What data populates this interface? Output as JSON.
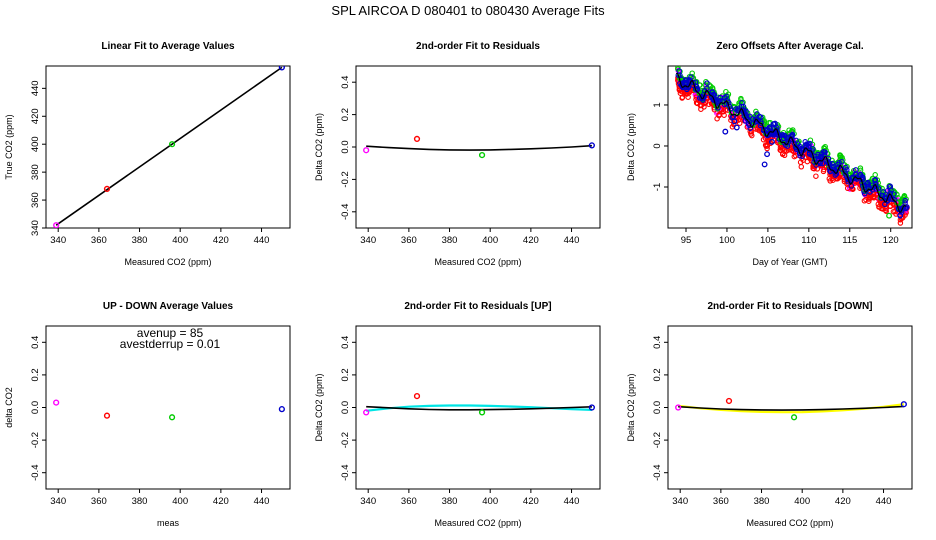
{
  "suptitle": "SPL   AIRCOA D   080401 to 080430   Average Fits",
  "colors": {
    "magenta": "#ff00ff",
    "red": "#ff0000",
    "green": "#00cc00",
    "blue": "#0000cc",
    "black": "#000000",
    "cyan": "#00e5e5",
    "yellow": "#ffff00"
  },
  "chart_data": [
    {
      "type": "scatter",
      "title": "Linear Fit to Average Values",
      "xlabel": "Measured CO2 (ppm)",
      "ylabel": "True CO2 (ppm)",
      "xlim": [
        334,
        454
      ],
      "ylim": [
        340,
        456
      ],
      "xticks": [
        340,
        360,
        380,
        400,
        420,
        440
      ],
      "yticks": [
        340,
        360,
        380,
        400,
        420,
        440
      ],
      "points": [
        {
          "x": 339,
          "y": 342,
          "color": "magenta"
        },
        {
          "x": 364,
          "y": 368,
          "color": "red"
        },
        {
          "x": 396,
          "y": 400,
          "color": "green"
        },
        {
          "x": 450,
          "y": 455,
          "color": "blue"
        }
      ],
      "lines": [
        {
          "x": [
            339,
            450
          ],
          "y": [
            342,
            455
          ],
          "color": "black"
        }
      ]
    },
    {
      "type": "scatter",
      "title": "2nd-order Fit to Residuals",
      "xlabel": "Measured CO2 (ppm)",
      "ylabel": "Delta CO2 (ppm)",
      "xlim": [
        334,
        454
      ],
      "ylim": [
        -0.5,
        0.5
      ],
      "xticks": [
        340,
        360,
        380,
        400,
        420,
        440
      ],
      "yticks": [
        -0.4,
        -0.2,
        0.0,
        0.2,
        0.4
      ],
      "points": [
        {
          "x": 339,
          "y": -0.02,
          "color": "magenta"
        },
        {
          "x": 364,
          "y": 0.05,
          "color": "red"
        },
        {
          "x": 396,
          "y": -0.05,
          "color": "green"
        },
        {
          "x": 450,
          "y": 0.01,
          "color": "blue"
        }
      ],
      "lines": [
        {
          "x": [
            339,
            350,
            360,
            370,
            380,
            390,
            400,
            410,
            420,
            430,
            440,
            450
          ],
          "y": [
            0.005,
            -0.004,
            -0.01,
            -0.015,
            -0.018,
            -0.019,
            -0.018,
            -0.015,
            -0.011,
            -0.006,
            0.0,
            0.008
          ],
          "color": "black"
        }
      ]
    },
    {
      "type": "scatter",
      "title": "Zero Offsets After Average Cal.",
      "xlabel": "Day of Year (GMT)",
      "ylabel": "Delta CO2 (ppm)",
      "xlim": [
        92.8,
        122.6
      ],
      "ylim": [
        -2.0,
        1.95
      ],
      "xticks": [
        95,
        100,
        105,
        110,
        115,
        120
      ],
      "yticks": [
        -1,
        0,
        1
      ],
      "trend": {
        "x0": 93.8,
        "x1": 122,
        "y0": 1.65,
        "y1": -1.55,
        "wiggle": 0.12
      },
      "noise": {
        "start": 94,
        "end": 122,
        "count": 330
      },
      "series": [
        {
          "name": "",
          "color": "magenta",
          "offset": 0.0
        },
        {
          "name": "",
          "color": "red",
          "offset": -0.16
        },
        {
          "name": "",
          "color": "green",
          "offset": 0.12
        },
        {
          "name": "",
          "color": "blue",
          "offset": 0.05
        }
      ],
      "dips": [
        {
          "x": 99.8,
          "y": 0.35,
          "color": "blue"
        },
        {
          "x": 100.9,
          "y": 0.6,
          "color": "blue"
        },
        {
          "x": 101.2,
          "y": 0.45,
          "color": "blue"
        },
        {
          "x": 104.6,
          "y": -0.45,
          "color": "blue"
        },
        {
          "x": 104.9,
          "y": -0.2,
          "color": "blue"
        },
        {
          "x": 105.5,
          "y": 0.1,
          "color": "blue"
        },
        {
          "x": 119.8,
          "y": -1.7,
          "color": "green"
        }
      ]
    },
    {
      "type": "scatter",
      "title": "UP - DOWN Average Values",
      "xlabel": "meas",
      "ylabel": "delta CO2",
      "xlim": [
        334,
        454
      ],
      "ylim": [
        -0.5,
        0.5
      ],
      "xticks": [
        340,
        360,
        380,
        400,
        420,
        440
      ],
      "yticks": [
        -0.4,
        -0.2,
        0.0,
        0.2,
        0.4
      ],
      "annotations": [
        "avenup =  85",
        "avestderrup =  0.01"
      ],
      "points": [
        {
          "x": 339,
          "y": 0.03,
          "color": "magenta"
        },
        {
          "x": 364,
          "y": -0.05,
          "color": "red"
        },
        {
          "x": 396,
          "y": -0.06,
          "color": "green"
        },
        {
          "x": 450,
          "y": -0.01,
          "color": "blue"
        }
      ],
      "lines": []
    },
    {
      "type": "scatter",
      "title": "2nd-order Fit to Residuals [UP]",
      "xlabel": "Measured CO2 (ppm)",
      "ylabel": "Delta CO2 (ppm)",
      "xlim": [
        334,
        454
      ],
      "ylim": [
        -0.5,
        0.5
      ],
      "xticks": [
        340,
        360,
        380,
        400,
        420,
        440
      ],
      "yticks": [
        -0.4,
        -0.2,
        0.0,
        0.2,
        0.4
      ],
      "points": [
        {
          "x": 339,
          "y": -0.03,
          "color": "magenta"
        },
        {
          "x": 364,
          "y": 0.07,
          "color": "red"
        },
        {
          "x": 396,
          "y": -0.03,
          "color": "green"
        },
        {
          "x": 450,
          "y": 0.0,
          "color": "blue"
        }
      ],
      "lines": [
        {
          "x": [
            339,
            350,
            360,
            370,
            380,
            390,
            400,
            410,
            420,
            430,
            440,
            450
          ],
          "y": [
            -0.02,
            -0.005,
            0.005,
            0.01,
            0.012,
            0.012,
            0.01,
            0.006,
            0.002,
            -0.004,
            -0.01,
            -0.015
          ],
          "color": "cyan"
        },
        {
          "x": [
            339,
            350,
            360,
            370,
            380,
            390,
            400,
            410,
            420,
            430,
            440,
            450
          ],
          "y": [
            0.005,
            -0.002,
            -0.008,
            -0.012,
            -0.014,
            -0.014,
            -0.013,
            -0.011,
            -0.008,
            -0.004,
            0.0,
            0.004
          ],
          "color": "black"
        }
      ]
    },
    {
      "type": "scatter",
      "title": "2nd-order Fit to Residuals [DOWN]",
      "xlabel": "Measured CO2 (ppm)",
      "ylabel": "Delta CO2 (ppm)",
      "xlim": [
        334,
        454
      ],
      "ylim": [
        -0.5,
        0.5
      ],
      "xticks": [
        340,
        360,
        380,
        400,
        420,
        440
      ],
      "yticks": [
        -0.4,
        -0.2,
        0.0,
        0.2,
        0.4
      ],
      "points": [
        {
          "x": 339,
          "y": 0.0,
          "color": "magenta"
        },
        {
          "x": 364,
          "y": 0.04,
          "color": "red"
        },
        {
          "x": 396,
          "y": -0.06,
          "color": "green"
        },
        {
          "x": 450,
          "y": 0.02,
          "color": "blue"
        }
      ],
      "lines": [
        {
          "x": [
            339,
            350,
            360,
            370,
            380,
            390,
            400,
            410,
            420,
            430,
            440,
            450
          ],
          "y": [
            0.01,
            -0.005,
            -0.015,
            -0.022,
            -0.027,
            -0.029,
            -0.028,
            -0.024,
            -0.017,
            -0.008,
            0.004,
            0.02
          ],
          "color": "yellow"
        },
        {
          "x": [
            339,
            350,
            360,
            370,
            380,
            390,
            400,
            410,
            420,
            430,
            440,
            450
          ],
          "y": [
            0.005,
            -0.003,
            -0.009,
            -0.013,
            -0.015,
            -0.016,
            -0.015,
            -0.013,
            -0.009,
            -0.005,
            0.0,
            0.006
          ],
          "color": "black"
        }
      ]
    }
  ]
}
